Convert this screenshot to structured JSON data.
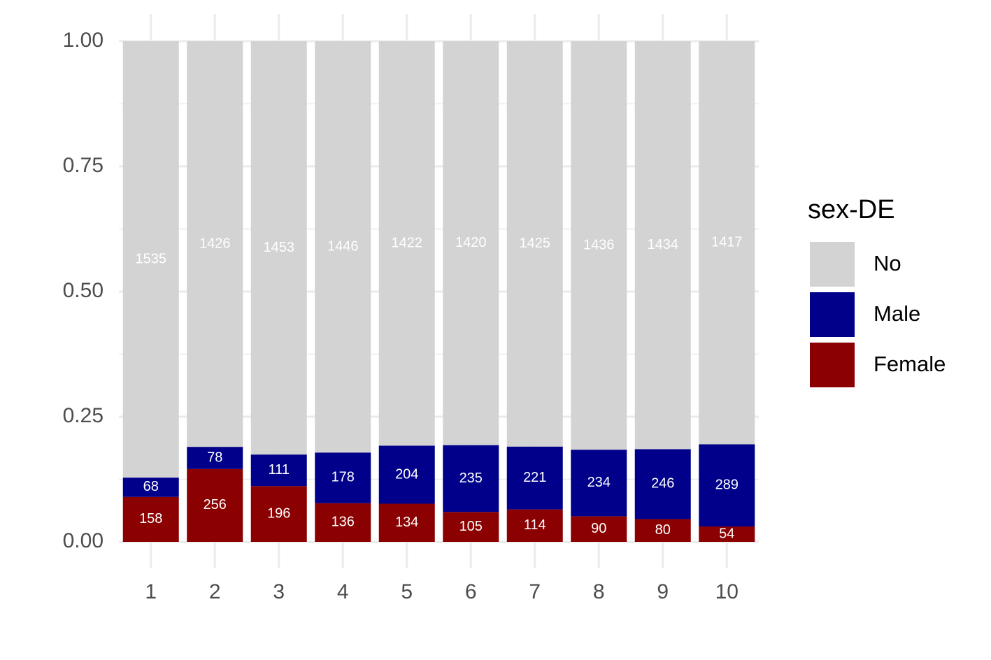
{
  "chart_data": {
    "type": "bar",
    "stacked": "percent",
    "categories": [
      "1",
      "2",
      "3",
      "4",
      "5",
      "6",
      "7",
      "8",
      "9",
      "10"
    ],
    "series": [
      {
        "name": "No",
        "color": "#d3d3d3",
        "values": [
          1535,
          1426,
          1453,
          1446,
          1422,
          1420,
          1425,
          1436,
          1434,
          1417
        ]
      },
      {
        "name": "Male",
        "color": "#00008b",
        "values": [
          68,
          78,
          111,
          178,
          204,
          235,
          221,
          234,
          246,
          289
        ]
      },
      {
        "name": "Female",
        "color": "#8b0000",
        "values": [
          158,
          256,
          196,
          136,
          134,
          105,
          114,
          90,
          80,
          54
        ]
      }
    ],
    "legend_title": "sex-DE",
    "legend_position": "right",
    "ylim": [
      0,
      1
    ],
    "yticks": [
      {
        "value": 0,
        "label": "0.00"
      },
      {
        "value": 0.25,
        "label": "0.25"
      },
      {
        "value": 0.5,
        "label": "0.50"
      },
      {
        "value": 0.75,
        "label": "0.75"
      },
      {
        "value": 1,
        "label": "1.00"
      }
    ],
    "grid": true
  }
}
